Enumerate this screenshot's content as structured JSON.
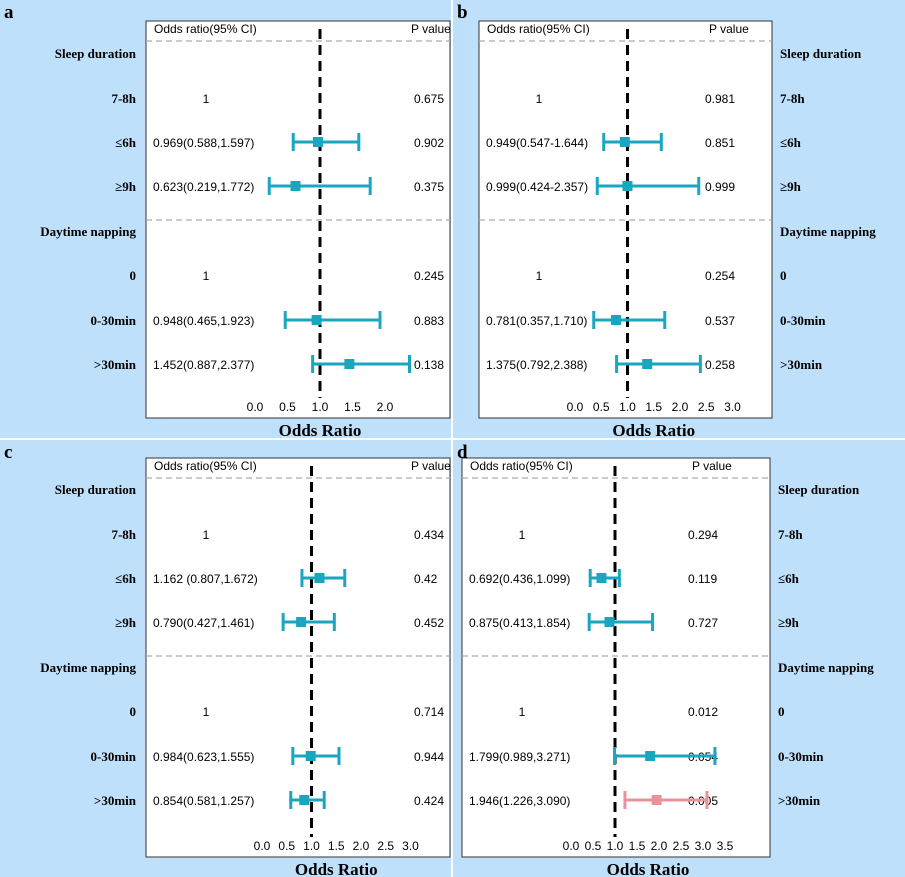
{
  "chart_data": [
    {
      "type": "forest",
      "panel_label": "a",
      "col_headers": {
        "or": "Odds ratio(95% CI)",
        "p": "P value"
      },
      "row_label_side": "left",
      "axis_title": "Odds Ratio",
      "ticks": [
        "0.0",
        "0.5",
        "1.0",
        "1.5",
        "2.0"
      ],
      "xlim": [
        0,
        2.1
      ],
      "reference_line": 1,
      "accent_color": "#1aa6bf",
      "rows": [
        {
          "label": "Sleep duration",
          "type": "section"
        },
        {
          "label": "7-8h",
          "or_text": "1",
          "p": "0.675"
        },
        {
          "label": "≤6h",
          "or_text": "0.969(0.588,1.597)",
          "p": "0.902",
          "or": 0.969,
          "lo": 0.588,
          "hi": 1.597
        },
        {
          "label": "≥9h",
          "or_text": "0.623(0.219,1.772)",
          "p": "0.375",
          "or": 0.623,
          "lo": 0.219,
          "hi": 1.772
        },
        {
          "label": "Daytime napping",
          "type": "section"
        },
        {
          "label": "0",
          "or_text": "1",
          "p": "0.245"
        },
        {
          "label": "0-30min",
          "or_text": "0.948(0.465,1.923)",
          "p": "0.883",
          "or": 0.948,
          "lo": 0.465,
          "hi": 1.923
        },
        {
          "label": ">30min",
          "or_text": "1.452(0.887,2.377)",
          "p": "0.138",
          "or": 1.452,
          "lo": 0.887,
          "hi": 2.377,
          "clip_hi": true
        }
      ]
    },
    {
      "type": "forest",
      "panel_label": "b",
      "col_headers": {
        "or": "Odds ratio(95% CI)",
        "p": "P value"
      },
      "row_label_side": "right",
      "axis_title": "Odds Ratio",
      "ticks": [
        "0.0",
        "0.5",
        "1.0",
        "1.5",
        "2.0",
        "2.5",
        "3.0"
      ],
      "xlim": [
        0,
        3.0
      ],
      "reference_line": 1,
      "accent_color": "#1aa6bf",
      "rows": [
        {
          "label": "Sleep duration",
          "type": "section"
        },
        {
          "label": "7-8h",
          "or_text": "1",
          "p": "0.981"
        },
        {
          "label": "≤6h",
          "or_text": "0.949(0.547-1.644)",
          "p": "0.851",
          "or": 0.949,
          "lo": 0.547,
          "hi": 1.644
        },
        {
          "label": "≥9h",
          "or_text": "0.999(0.424-2.357)",
          "p": "0.999",
          "or": 0.999,
          "lo": 0.424,
          "hi": 2.357
        },
        {
          "label": "Daytime napping",
          "type": "section"
        },
        {
          "label": "0",
          "or_text": "1",
          "p": "0.254"
        },
        {
          "label": "0-30min",
          "or_text": "0.781(0.357,1.710)",
          "p": "0.537",
          "or": 0.781,
          "lo": 0.357,
          "hi": 1.71
        },
        {
          "label": ">30min",
          "or_text": "1.375(0.792,2.388)",
          "p": "0.258",
          "or": 1.375,
          "lo": 0.792,
          "hi": 2.388
        }
      ]
    },
    {
      "type": "forest",
      "panel_label": "c",
      "col_headers": {
        "or": "Odds ratio(95% CI)",
        "p": "P value"
      },
      "row_label_side": "left",
      "axis_title": "Odds Ratio",
      "ticks": [
        "0.0",
        "0.5",
        "1.0",
        "1.5",
        "2.0",
        "2.5",
        "3.0"
      ],
      "xlim": [
        0,
        3.0
      ],
      "reference_line": 1,
      "accent_color": "#1aa6bf",
      "rows": [
        {
          "label": "Sleep duration",
          "type": "section"
        },
        {
          "label": "7-8h",
          "or_text": "1",
          "p": "0.434"
        },
        {
          "label": "≤6h",
          "or_text": "1.162 (0.807,1.672)",
          "p": "0.42",
          "or": 1.162,
          "lo": 0.807,
          "hi": 1.672
        },
        {
          "label": "≥9h",
          "or_text": "0.790(0.427,1.461)",
          "p": "0.452",
          "or": 0.79,
          "lo": 0.427,
          "hi": 1.461
        },
        {
          "label": "Daytime napping",
          "type": "section"
        },
        {
          "label": "0",
          "or_text": "1",
          "p": "0.714"
        },
        {
          "label": "0-30min",
          "or_text": "0.984(0.623,1.555)",
          "p": "0.944",
          "or": 0.984,
          "lo": 0.623,
          "hi": 1.555
        },
        {
          "label": ">30min",
          "or_text": "0.854(0.581,1.257)",
          "p": "0.424",
          "or": 0.854,
          "lo": 0.581,
          "hi": 1.257
        }
      ]
    },
    {
      "type": "forest",
      "panel_label": "d",
      "col_headers": {
        "or": "Odds ratio(95% CI)",
        "p": "P value"
      },
      "row_label_side": "right",
      "axis_title": "Odds Ratio",
      "ticks": [
        "0.0",
        "0.5",
        "1.0",
        "1.5",
        "2.0",
        "2.5",
        "3.0",
        "3.5"
      ],
      "xlim": [
        0,
        3.5
      ],
      "reference_line": 1,
      "accent_color": "#1aa6bf",
      "highlight_color": "#e8939a",
      "rows": [
        {
          "label": "Sleep duration",
          "type": "section"
        },
        {
          "label": "7-8h",
          "or_text": "1",
          "p": "0.294"
        },
        {
          "label": "≤6h",
          "or_text": "0.692(0.436,1.099)",
          "p": "0.119",
          "or": 0.692,
          "lo": 0.436,
          "hi": 1.099
        },
        {
          "label": "≥9h",
          "or_text": "0.875(0.413,1.854)",
          "p": "0.727",
          "or": 0.875,
          "lo": 0.413,
          "hi": 1.854
        },
        {
          "label": "Daytime napping",
          "type": "section"
        },
        {
          "label": "0",
          "or_text": "1",
          "p": "0.012"
        },
        {
          "label": "0-30min",
          "or_text": "1.799(0.989,3.271)",
          "p": "0.054",
          "or": 1.799,
          "lo": 0.989,
          "hi": 3.271
        },
        {
          "label": ">30min",
          "or_text": "1.946(1.226,3.090)",
          "p": "0.005",
          "or": 1.946,
          "lo": 1.226,
          "hi": 3.09,
          "highlight": true
        }
      ]
    }
  ]
}
